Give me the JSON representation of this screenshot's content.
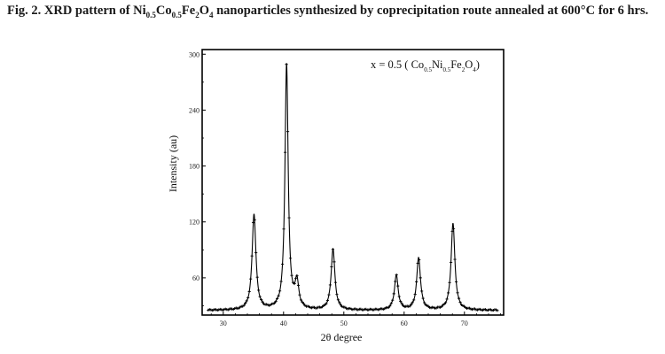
{
  "figure": {
    "caption_parts": [
      {
        "t": "Fig. 2. XRD pattern of Ni"
      },
      {
        "t": "0.5",
        "sub": true
      },
      {
        "t": "Co"
      },
      {
        "t": "0.5",
        "sub": true
      },
      {
        "t": "Fe"
      },
      {
        "t": "2",
        "sub": true
      },
      {
        "t": "O"
      },
      {
        "t": "4",
        "sub": true
      },
      {
        "t": " nanoparticles synthesized by coprecipitation route annealed at 600°C for 6 hrs."
      }
    ]
  },
  "chart_data": {
    "type": "line",
    "xlabel": "2θ degree",
    "ylabel": "Intensity (au)",
    "xlim": [
      26.5,
      76.5
    ],
    "ylim": [
      20,
      305
    ],
    "xticks": [
      30,
      40,
      50,
      60,
      70
    ],
    "yticks": [
      60,
      120,
      180,
      240,
      300
    ],
    "grid": false,
    "markers": "plus",
    "baseline": 25,
    "annotation": {
      "parts": [
        {
          "t": "x = 0.5 ( Co"
        },
        {
          "t": "0.5",
          "sub": true
        },
        {
          "t": "Ni"
        },
        {
          "t": "0.5",
          "sub": true
        },
        {
          "t": "Fe"
        },
        {
          "t": "2",
          "sub": true
        },
        {
          "t": "O"
        },
        {
          "t": "4",
          "sub": true
        },
        {
          "t": ")"
        }
      ]
    },
    "series": [
      {
        "peaks": [
          {
            "x": 35.1,
            "y": 128
          },
          {
            "x": 40.5,
            "y": 288
          },
          {
            "x": 42.2,
            "y": 53
          },
          {
            "x": 48.2,
            "y": 90
          },
          {
            "x": 58.7,
            "y": 62
          },
          {
            "x": 62.4,
            "y": 81
          },
          {
            "x": 68.1,
            "y": 118
          }
        ]
      }
    ]
  }
}
